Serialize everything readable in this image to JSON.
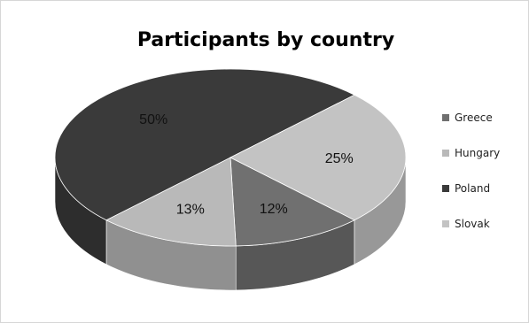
{
  "chart_data": {
    "type": "pie",
    "style": "3d",
    "title": "Participants by country",
    "legend_position": "right",
    "slices": [
      {
        "label": "Greece",
        "value": 12,
        "data_label": "12%",
        "color": "#707070"
      },
      {
        "label": "Hungary",
        "value": 13,
        "data_label": "13%",
        "color": "#b9b9b9"
      },
      {
        "label": "Poland",
        "value": 50,
        "data_label": "50%",
        "color": "#3a3a3a"
      },
      {
        "label": "Slovak",
        "value": 25,
        "data_label": "25%",
        "color": "#c3c3c3"
      }
    ]
  }
}
